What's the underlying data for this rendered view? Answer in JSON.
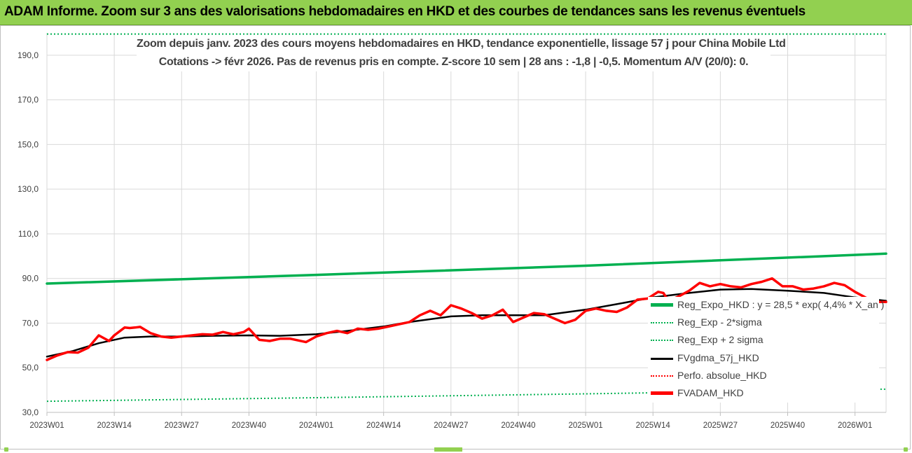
{
  "banner": {
    "title": "ADAM Informe. Zoom sur 3 ans des valorisations hebdomadaires en HKD et des courbes de tendances sans les revenus éventuels"
  },
  "colors": {
    "banner_bg": "#92d050",
    "trend_green": "#00b050",
    "red_series": "#ff0000",
    "black_series": "#000000",
    "gridline": "#d9d9d9",
    "text": "#404040"
  },
  "chart_data": {
    "type": "line",
    "title_line1": "Zoom depuis janv. 2023 des cours moyens hebdomadaires en HKD, tendance exponentielle, lissage 57 j pour China Mobile Ltd",
    "title_line2": "Cotations -> févr 2026.  Pas de revenus pris en compte. Z-score 10 sem | 28 ans : -1,8 | -0,5. Momentum A/V (20/0): 0.",
    "ylim": [
      30,
      200
    ],
    "yticks": [
      "30,0",
      "50,0",
      "70,0",
      "90,0",
      "110,0",
      "130,0",
      "150,0",
      "170,0",
      "190,0"
    ],
    "ytick_values": [
      30,
      50,
      70,
      90,
      110,
      130,
      150,
      170,
      190
    ],
    "x_labels": [
      "2023W01",
      "2023W14",
      "2023W27",
      "2023W40",
      "2024W01",
      "2024W14",
      "2024W27",
      "2024W40",
      "2025W01",
      "2025W14",
      "2025W27",
      "2025W40",
      "2026W01"
    ],
    "x_label_index": [
      0,
      13,
      26,
      39,
      52,
      65,
      78,
      91,
      104,
      117,
      130,
      143,
      156
    ],
    "n_points": 163,
    "grid": "vertical and horizontal gridlines",
    "legend_position": "bottom-right, over plot",
    "series": [
      {
        "name": "Reg_Expo_HKD : y = 28,5 * exp( 4,4% * X_an )",
        "style": "solid-thick",
        "color": "#00b050",
        "x": [
          0,
          52,
          104,
          162
        ],
        "y": [
          87.7,
          91.6,
          95.7,
          101.1
        ]
      },
      {
        "name": "Reg_Exp - 2*sigma",
        "style": "dotted",
        "color": "#00b050",
        "x": [
          0,
          52,
          104,
          162
        ],
        "y": [
          35.0,
          36.6,
          38.3,
          40.4
        ]
      },
      {
        "name": "Reg_Exp + 2 sigma",
        "style": "dotted",
        "color": "#00b050",
        "x": [
          0,
          162
        ],
        "y": [
          199.5,
          199.5
        ]
      },
      {
        "name": "FVgdma_57j_HKD",
        "style": "solid",
        "color": "#000000",
        "x": [
          0,
          5,
          10,
          15,
          20,
          26,
          32,
          39,
          45,
          52,
          58,
          65,
          70,
          78,
          84,
          91,
          96,
          104,
          110,
          117,
          124,
          130,
          136,
          143,
          150,
          156,
          162
        ],
        "y": [
          55.0,
          57.5,
          61.0,
          63.5,
          64.0,
          64.0,
          64.3,
          64.5,
          64.3,
          65.0,
          66.5,
          68.5,
          70.5,
          73.0,
          73.5,
          73.5,
          73.5,
          76.0,
          78.5,
          81.5,
          83.5,
          85.0,
          85.3,
          84.5,
          83.5,
          81.5,
          80.0
        ]
      },
      {
        "name": "Perfo. absolue_HKD",
        "style": "dotted",
        "color": "#ff0000",
        "x": [],
        "y": []
      },
      {
        "name": "FVADAM_HKD",
        "style": "solid-thick",
        "color": "#ff0000",
        "x": [
          0,
          2,
          4,
          6,
          8,
          10,
          12,
          13,
          15,
          16,
          17,
          18,
          20,
          22,
          24,
          26,
          28,
          30,
          32,
          34,
          36,
          38,
          39,
          41,
          43,
          45,
          47,
          50,
          52,
          54,
          56,
          57,
          58,
          60,
          62,
          64,
          66,
          68,
          70,
          72,
          74,
          76,
          78,
          80,
          82,
          84,
          86,
          88,
          90,
          92,
          94,
          96,
          98,
          100,
          102,
          104,
          106,
          108,
          110,
          112,
          114,
          116,
          118,
          119,
          120,
          122,
          124,
          126,
          128,
          130,
          132,
          134,
          136,
          138,
          140,
          142,
          144,
          146,
          148,
          150,
          152,
          154,
          156,
          158,
          160,
          162
        ],
        "y": [
          53.5,
          55.5,
          57.0,
          56.8,
          59.0,
          64.5,
          62.0,
          64.5,
          68.0,
          67.8,
          68.0,
          68.3,
          65.5,
          64.0,
          63.5,
          64.0,
          64.5,
          65.0,
          64.8,
          66.0,
          65.0,
          66.0,
          67.5,
          62.5,
          62.0,
          63.0,
          63.0,
          61.5,
          64.0,
          65.5,
          66.5,
          66.0,
          65.5,
          67.5,
          67.0,
          67.5,
          68.5,
          69.5,
          70.5,
          73.5,
          75.5,
          73.5,
          78.0,
          76.5,
          74.5,
          72.0,
          73.5,
          76.0,
          70.5,
          72.5,
          74.5,
          74.0,
          72.0,
          70.0,
          71.5,
          75.5,
          76.5,
          75.5,
          75.0,
          77.0,
          80.5,
          81.0,
          84.0,
          83.5,
          80.0,
          82.0,
          84.5,
          88.0,
          86.5,
          87.5,
          86.5,
          86.0,
          87.5,
          88.5,
          90.0,
          86.5,
          86.5,
          85.0,
          85.5,
          86.5,
          88.0,
          87.0,
          84.0,
          81.5,
          79.5,
          79.5
        ]
      }
    ]
  }
}
